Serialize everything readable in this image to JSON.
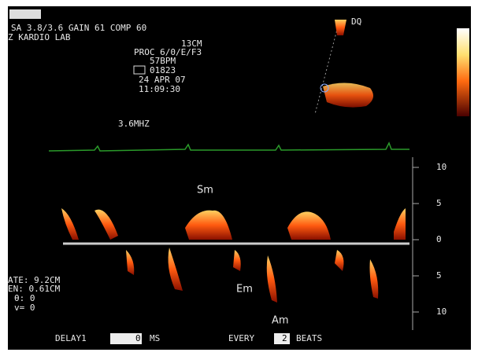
{
  "header": {
    "settings": "SA 3.8/3.6  GAIN 61 COMP 60",
    "lab": "Z KARDIO LAB",
    "depth": "13CM",
    "proc": "PROC 6/0/E/F3",
    "heart_rate": "57BPM",
    "id": "01823",
    "date": "24 APR  07",
    "time": "11:09:30",
    "probe_mark": "DQ"
  },
  "frequency": "3.6MHZ",
  "scale": {
    "labels": [
      "10",
      "5",
      "0",
      "5",
      "10"
    ]
  },
  "waves": {
    "systolic": "Sm",
    "early": "Em",
    "atrial": "Am"
  },
  "params": {
    "gate": "ATE:  9.2CM",
    "length": "EN:  0.61CM",
    "angle": "θ:  0",
    "velocity": "v=  0"
  },
  "footer": {
    "delay_label": "DELAY1",
    "delay_value": "0",
    "delay_unit": "MS",
    "every_label": "EVERY",
    "every_value": "2",
    "every_unit": "BEATS"
  }
}
